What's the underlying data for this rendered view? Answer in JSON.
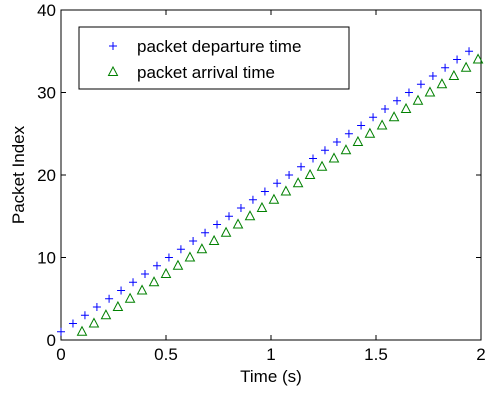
{
  "chart_data": {
    "type": "scatter",
    "title": "",
    "xlabel": "Time (s)",
    "ylabel": "Packet Index",
    "xlim": [
      0,
      2
    ],
    "ylim": [
      0,
      40
    ],
    "xticks": [
      "0",
      "0.5",
      "1",
      "1.5",
      "2"
    ],
    "yticks": [
      "0",
      "10",
      "20",
      "30",
      "40"
    ],
    "grid": false,
    "legend_position": "top-left",
    "series": [
      {
        "name": "packet departure time",
        "marker": "plus",
        "color": "#0000ff",
        "points": [
          [
            0.0,
            1
          ],
          [
            0.057,
            2
          ],
          [
            0.114,
            3
          ],
          [
            0.171,
            4
          ],
          [
            0.229,
            5
          ],
          [
            0.286,
            6
          ],
          [
            0.343,
            7
          ],
          [
            0.4,
            8
          ],
          [
            0.457,
            9
          ],
          [
            0.514,
            10
          ],
          [
            0.571,
            11
          ],
          [
            0.629,
            12
          ],
          [
            0.686,
            13
          ],
          [
            0.743,
            14
          ],
          [
            0.8,
            15
          ],
          [
            0.857,
            16
          ],
          [
            0.914,
            17
          ],
          [
            0.971,
            18
          ],
          [
            1.029,
            19
          ],
          [
            1.086,
            20
          ],
          [
            1.143,
            21
          ],
          [
            1.2,
            22
          ],
          [
            1.257,
            23
          ],
          [
            1.314,
            24
          ],
          [
            1.371,
            25
          ],
          [
            1.429,
            26
          ],
          [
            1.486,
            27
          ],
          [
            1.543,
            28
          ],
          [
            1.6,
            29
          ],
          [
            1.657,
            30
          ],
          [
            1.714,
            31
          ],
          [
            1.771,
            32
          ],
          [
            1.829,
            33
          ],
          [
            1.886,
            34
          ],
          [
            1.943,
            35
          ]
        ]
      },
      {
        "name": "packet arrival time",
        "marker": "triangle",
        "color": "#008000",
        "points": [
          [
            0.1,
            1
          ],
          [
            0.157,
            2
          ],
          [
            0.214,
            3
          ],
          [
            0.271,
            4
          ],
          [
            0.329,
            5
          ],
          [
            0.386,
            6
          ],
          [
            0.443,
            7
          ],
          [
            0.5,
            8
          ],
          [
            0.557,
            9
          ],
          [
            0.614,
            10
          ],
          [
            0.671,
            11
          ],
          [
            0.729,
            12
          ],
          [
            0.786,
            13
          ],
          [
            0.843,
            14
          ],
          [
            0.9,
            15
          ],
          [
            0.957,
            16
          ],
          [
            1.014,
            17
          ],
          [
            1.071,
            18
          ],
          [
            1.129,
            19
          ],
          [
            1.186,
            20
          ],
          [
            1.243,
            21
          ],
          [
            1.3,
            22
          ],
          [
            1.357,
            23
          ],
          [
            1.414,
            24
          ],
          [
            1.471,
            25
          ],
          [
            1.529,
            26
          ],
          [
            1.586,
            27
          ],
          [
            1.643,
            28
          ],
          [
            1.7,
            29
          ],
          [
            1.757,
            30
          ],
          [
            1.814,
            31
          ],
          [
            1.871,
            32
          ],
          [
            1.929,
            33
          ],
          [
            1.986,
            34
          ]
        ]
      }
    ]
  }
}
